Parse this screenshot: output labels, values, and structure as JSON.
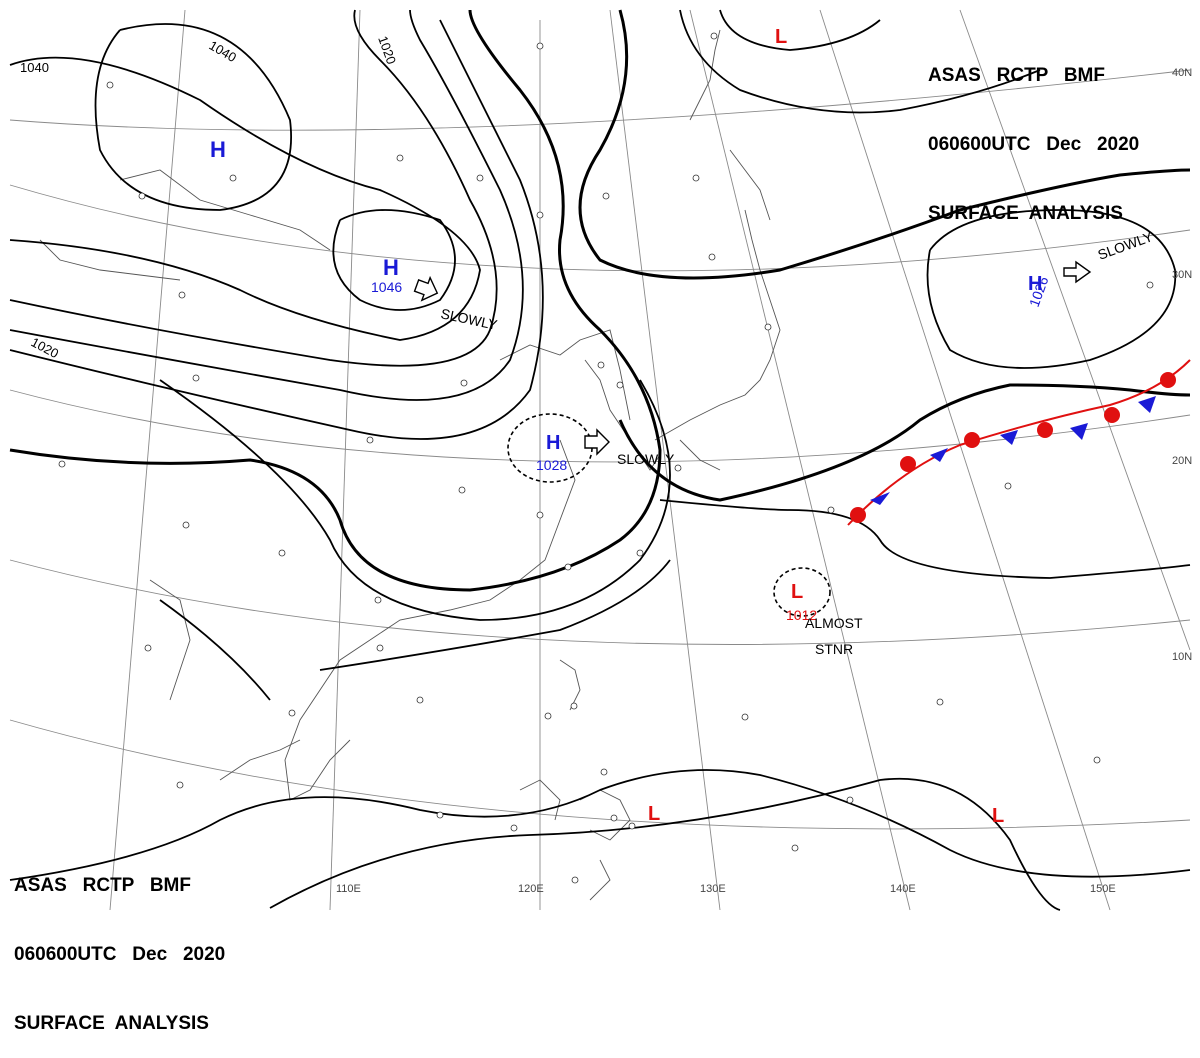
{
  "header": {
    "line1": "ASAS   RCTP   BMF",
    "line2": "060600UTC   Dec   2020",
    "line3": "SURFACE  ANALYSIS"
  },
  "lat_labels": [
    "40N",
    "30N",
    "20N",
    "10N"
  ],
  "lon_labels": [
    "110E",
    "120E",
    "130E",
    "140E",
    "150E"
  ],
  "isobar_labels": [
    "1040",
    "1040",
    "1020",
    "1020"
  ],
  "pressure_centers": [
    {
      "type": "H",
      "value": ""
    },
    {
      "type": "H",
      "value": "1046"
    },
    {
      "type": "H",
      "value": "1028"
    },
    {
      "type": "H",
      "value": "1026"
    },
    {
      "type": "L",
      "value": "1012"
    },
    {
      "type": "L",
      "value": ""
    },
    {
      "type": "L",
      "value": ""
    },
    {
      "type": "L",
      "value": ""
    }
  ],
  "movement_labels": [
    "SLOWLY",
    "SLOWLY",
    "SLOWLY"
  ],
  "annotation": {
    "line1": "ALMOST",
    "line2": "STNR"
  },
  "colors": {
    "high": "#1a1ad6",
    "low": "#e01010",
    "warm_front": "#e01010",
    "cold_front": "#1a1ad6",
    "ink": "#000000",
    "geo": "#555555"
  }
}
